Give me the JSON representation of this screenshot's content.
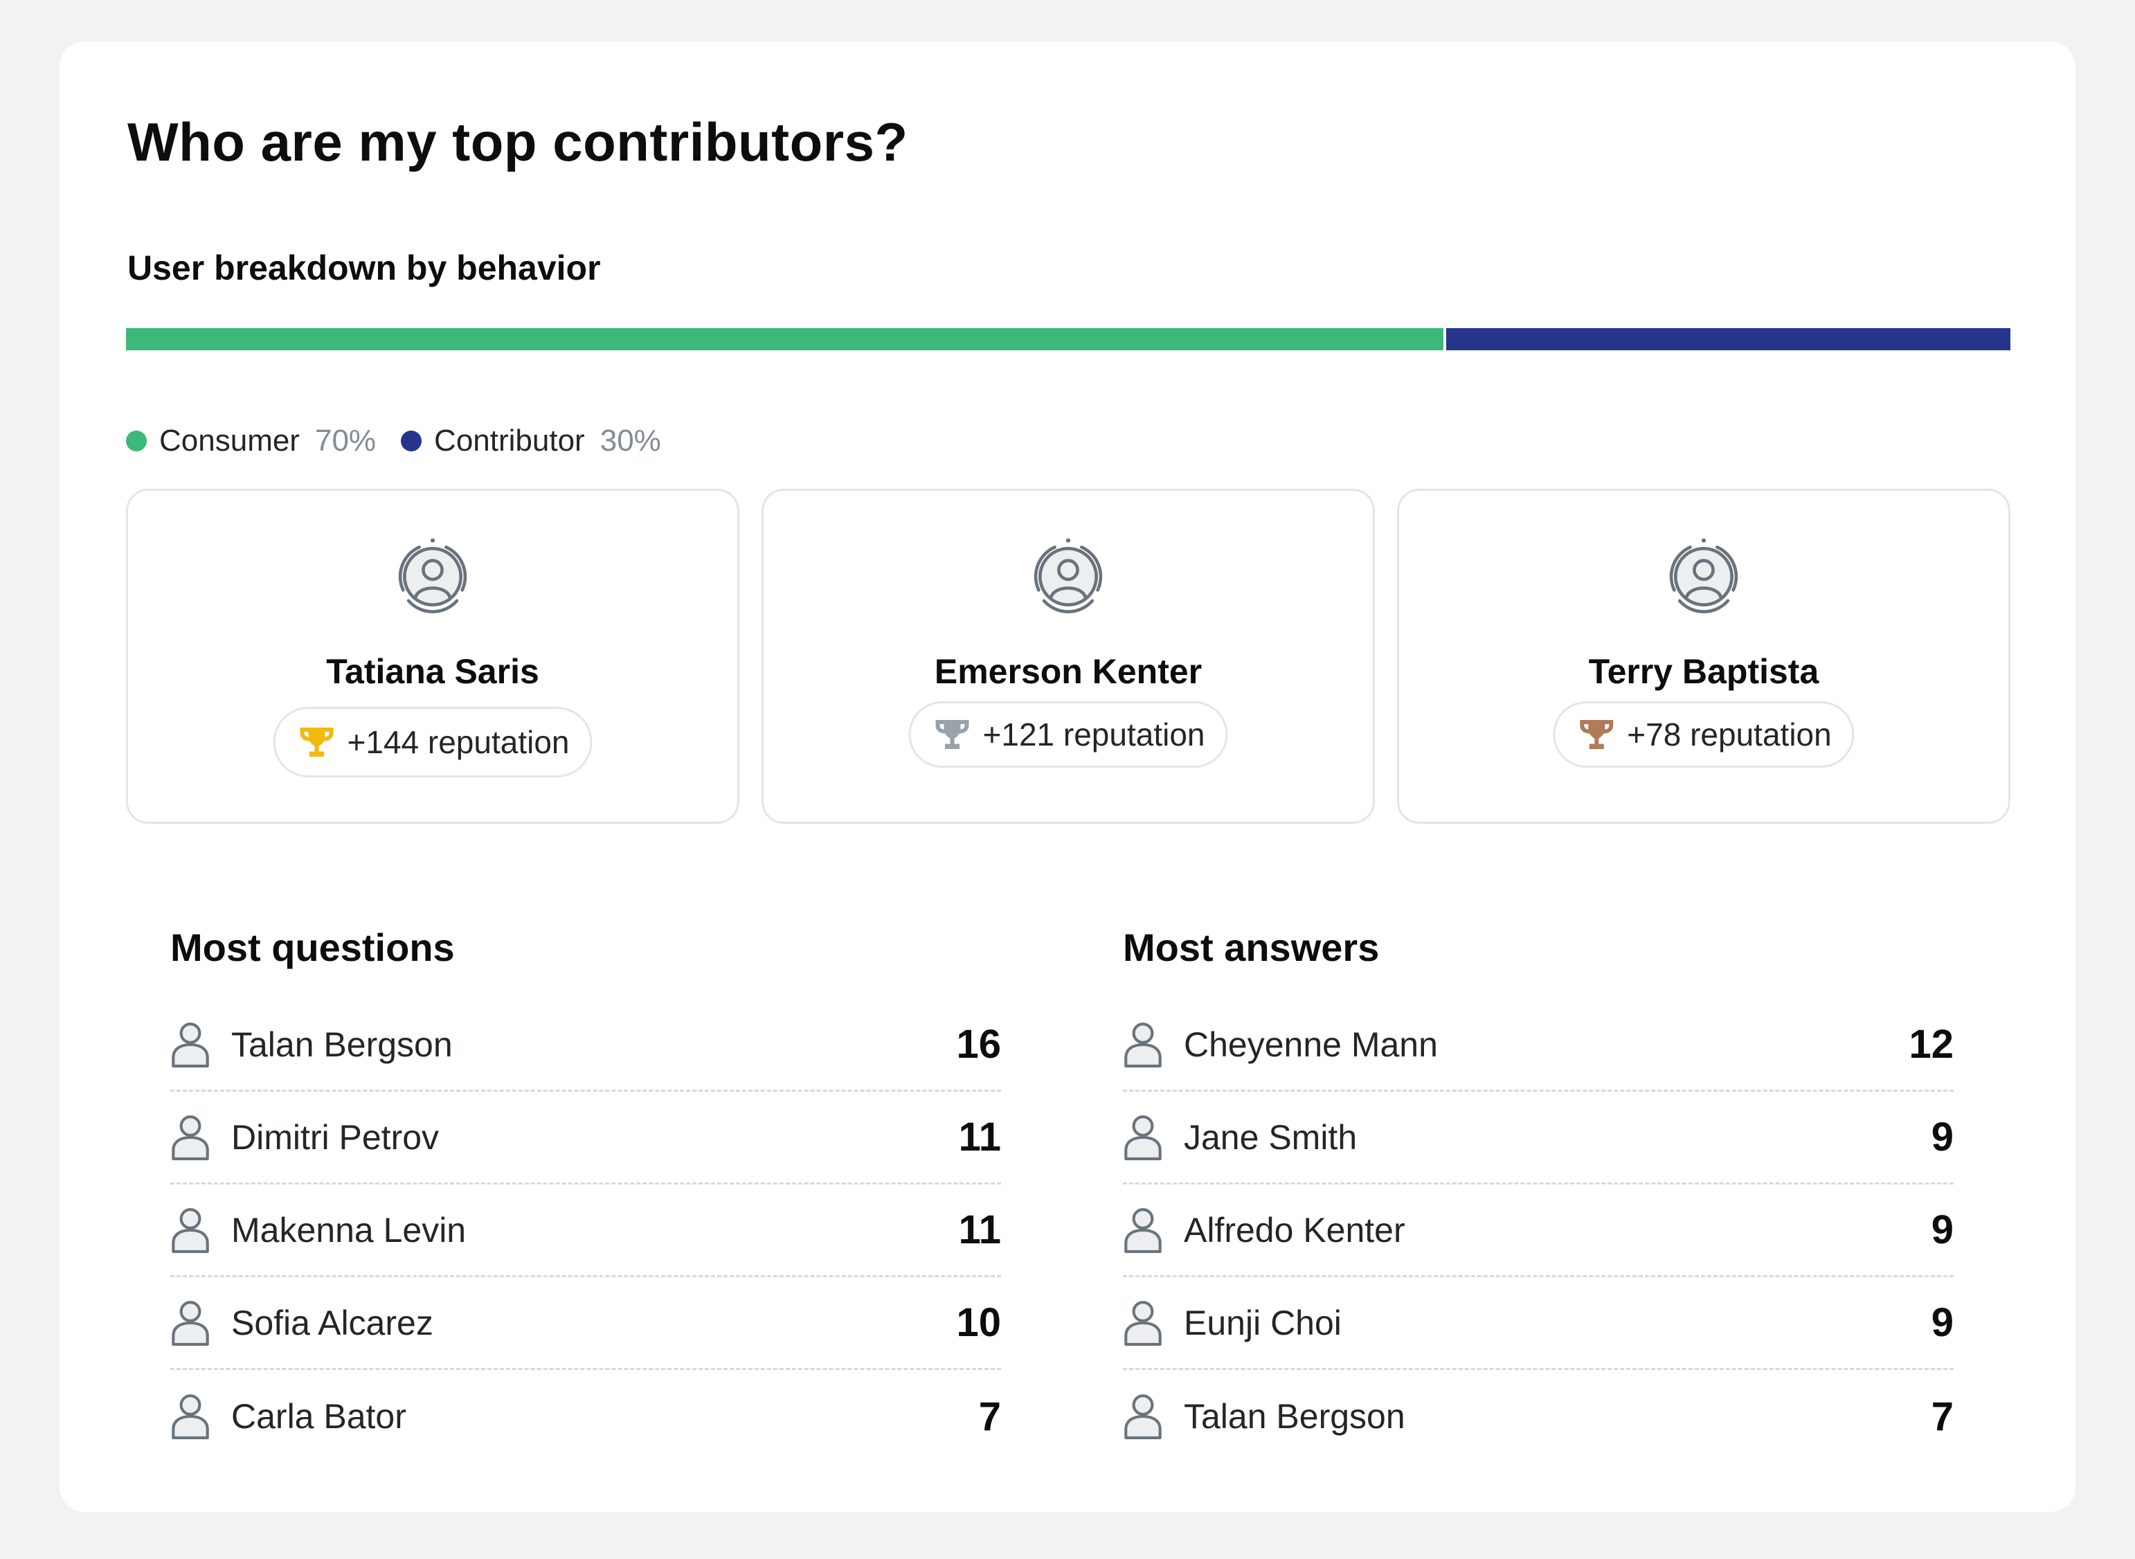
{
  "title": "Who are my top contributors?",
  "breakdown": {
    "title": "User breakdown by behavior",
    "segments": [
      {
        "name": "Consumer",
        "percent_label": "70%",
        "value": 0.7,
        "color": "#3cb878"
      },
      {
        "name": "Contributor",
        "percent_label": "30%",
        "value": 0.3,
        "color": "#27348b"
      }
    ]
  },
  "leaders": [
    {
      "name": "Tatiana Saris",
      "reputation": "+144 reputation",
      "trophy": "trophy-gold-icon",
      "trophy_color": "#f2b90f"
    },
    {
      "name": "Emerson Kenter",
      "reputation": "+121 reputation",
      "trophy": "trophy-silver-icon",
      "trophy_color": "#9aa1a8"
    },
    {
      "name": "Terry Baptista",
      "reputation": "+78 reputation",
      "trophy": "trophy-bronze-icon",
      "trophy_color": "#b07b58"
    }
  ],
  "most_questions": {
    "title": "Most questions",
    "rows": [
      {
        "name": "Talan Bergson",
        "count": "16"
      },
      {
        "name": "Dimitri Petrov",
        "count": "11"
      },
      {
        "name": "Makenna Levin",
        "count": "11"
      },
      {
        "name": "Sofia Alcarez",
        "count": "10"
      },
      {
        "name": "Carla Bator",
        "count": "7"
      }
    ]
  },
  "most_answers": {
    "title": "Most answers",
    "rows": [
      {
        "name": "Cheyenne Mann",
        "count": "12"
      },
      {
        "name": "Jane Smith",
        "count": "9"
      },
      {
        "name": "Alfredo Kenter",
        "count": "9"
      },
      {
        "name": "Eunji Choi",
        "count": "9"
      },
      {
        "name": "Talan Bergson",
        "count": "7"
      }
    ]
  }
}
